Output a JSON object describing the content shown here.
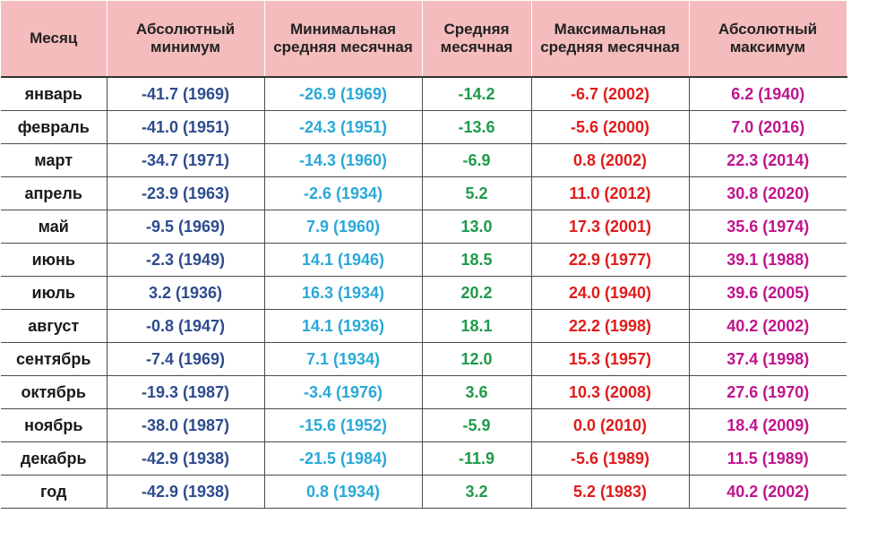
{
  "table": {
    "headers": [
      "Месяц",
      "Абсолютный минимум",
      "Минимальная средняя месячная",
      "Средняя месячная",
      "Максимальная средняя месячная",
      "Абсолютный максимум"
    ],
    "rows": [
      [
        "январь",
        "-41.7 (1969)",
        "-26.9 (1969)",
        "-14.2",
        "-6.7 (2002)",
        "6.2 (1940)"
      ],
      [
        "февраль",
        "-41.0 (1951)",
        "-24.3 (1951)",
        "-13.6",
        "-5.6 (2000)",
        "7.0 (2016)"
      ],
      [
        "март",
        "-34.7 (1971)",
        "-14.3 (1960)",
        "-6.9",
        "0.8 (2002)",
        "22.3 (2014)"
      ],
      [
        "апрель",
        "-23.9 (1963)",
        "-2.6 (1934)",
        "5.2",
        "11.0 (2012)",
        "30.8 (2020)"
      ],
      [
        "май",
        "-9.5 (1969)",
        "7.9 (1960)",
        "13.0",
        "17.3 (2001)",
        "35.6 (1974)"
      ],
      [
        "июнь",
        "-2.3 (1949)",
        "14.1 (1946)",
        "18.5",
        "22.9 (1977)",
        "39.1 (1988)"
      ],
      [
        "июль",
        "3.2 (1936)",
        "16.3 (1934)",
        "20.2",
        "24.0 (1940)",
        "39.6 (2005)"
      ],
      [
        "август",
        "-0.8 (1947)",
        "14.1 (1936)",
        "18.1",
        "22.2 (1998)",
        "40.2 (2002)"
      ],
      [
        "сентябрь",
        "-7.4 (1969)",
        "7.1 (1934)",
        "12.0",
        "15.3 (1957)",
        "37.4 (1998)"
      ],
      [
        "октябрь",
        "-19.3 (1987)",
        "-3.4 (1976)",
        "3.6",
        "10.3 (2008)",
        "27.6 (1970)"
      ],
      [
        "ноябрь",
        "-38.0 (1987)",
        "-15.6 (1952)",
        "-5.9",
        "0.0 (2010)",
        "18.4 (2009)"
      ],
      [
        "декабрь",
        "-42.9 (1938)",
        "-21.5 (1984)",
        "-11.9",
        "-5.6 (1989)",
        "11.5 (1989)"
      ],
      [
        "год",
        "-42.9 (1938)",
        "0.8 (1934)",
        "3.2",
        "5.2 (1983)",
        "40.2 (2002)"
      ]
    ]
  },
  "colors": {
    "header_bg": "#f4bcbc",
    "abs_min": "#2d4b8e",
    "min_avg": "#29a8d8",
    "avg": "#1f9a4a",
    "max_avg": "#e01b1b",
    "abs_max": "#c0148e"
  }
}
